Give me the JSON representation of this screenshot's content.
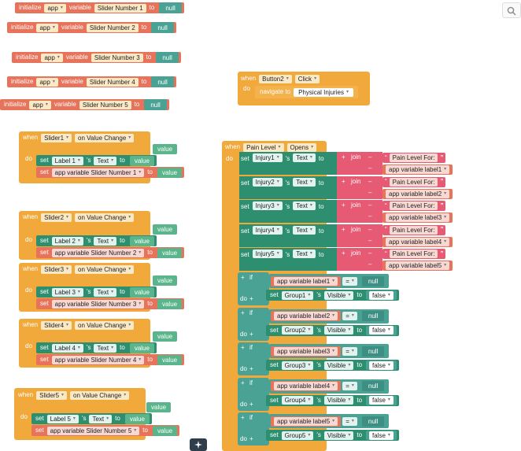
{
  "kw": {
    "initialize": "initialize",
    "app": "app",
    "variable": "variable",
    "to": "to",
    "null": "null",
    "when": "when",
    "do": "do",
    "set": "set",
    "s": "'s",
    "if": "if",
    "join": "join",
    "eq": "=",
    "plus": "+",
    "minus": "–",
    "quote_open": "“",
    "quote_close": "”",
    "value": "value",
    "false": "false"
  },
  "globals": [
    "Slider Number 1",
    "Slider Number 2",
    "Slider Number 3",
    "Slider Number 4",
    "Slider Number 5"
  ],
  "button2": {
    "component": "Button2",
    "event": "Click",
    "action": "navigate to",
    "target": "Physical Injuries"
  },
  "sliders": [
    {
      "component": "Slider1",
      "event": "on Value Change",
      "label": "Label 1",
      "prop": "Text",
      "var": "app variable Slider Number 1"
    },
    {
      "component": "Slider2",
      "event": "on Value Change",
      "label": "Label 2",
      "prop": "Text",
      "var": "app variable Slider Number 2"
    },
    {
      "component": "Slider3",
      "event": "on Value Change",
      "label": "Label 3",
      "prop": "Text",
      "var": "app variable Slider Number 3"
    },
    {
      "component": "Slider4",
      "event": "on Value Change",
      "label": "Label 4",
      "prop": "Text",
      "var": "app variable Slider Number 4"
    },
    {
      "component": "Slider5",
      "event": "on Value Change",
      "label": "Label 5",
      "prop": "Text",
      "var": "app variable Slider Number 5"
    }
  ],
  "pain": {
    "component": "Pain Level",
    "event": "Opens",
    "injuries": [
      {
        "target": "Injury1",
        "prop": "Text",
        "text": "Pain Level For:",
        "var": "app variable label1"
      },
      {
        "target": "Injury2",
        "prop": "Text",
        "text": "Pain Level For:",
        "var": "app variable label2"
      },
      {
        "target": "Injury3",
        "prop": "Text",
        "text": "Pain Level For:",
        "var": "app variable label3"
      },
      {
        "target": "Injury4",
        "prop": "Text",
        "text": "Pain Level For:",
        "var": "app variable label4"
      },
      {
        "target": "Injury5",
        "prop": "Text",
        "text": "Pain Level For:",
        "var": "app variable label5"
      }
    ],
    "ifs": [
      {
        "var": "app variable label1",
        "group": "Group1",
        "prop": "Visible"
      },
      {
        "var": "app variable label2",
        "group": "Group2",
        "prop": "Visible"
      },
      {
        "var": "app variable label3",
        "group": "Group3",
        "prop": "Visible"
      },
      {
        "var": "app variable label4",
        "group": "Group4",
        "prop": "Visible"
      },
      {
        "var": "app variable label5",
        "group": "Group5",
        "prop": "Visible"
      }
    ]
  },
  "colors": {
    "variable_block": "#e8735b",
    "event_block": "#f2a93b",
    "component_set": "#2e8f70",
    "text_join": "#e65a74",
    "logic": "#4aa294"
  }
}
